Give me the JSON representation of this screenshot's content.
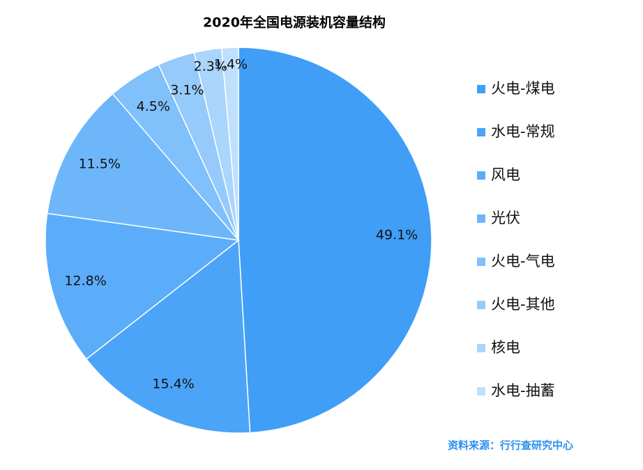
{
  "chart_data": {
    "type": "pie",
    "title": "2020年全国电源装机容量结构",
    "categories": [
      "火电-煤电",
      "水电-常规",
      "风电",
      "光伏",
      "火电-气电",
      "火电-其他",
      "核电",
      "水电-抽蓄"
    ],
    "values": [
      49.1,
      15.4,
      12.8,
      11.5,
      4.5,
      3.1,
      2.3,
      1.4
    ],
    "value_labels": [
      "49.1%",
      "15.4%",
      "12.8%",
      "11.5%",
      "4.5%",
      "3.1%",
      "2.3%",
      "1.4%"
    ],
    "colors": [
      "#409ef7",
      "#4ba4f8",
      "#5badf9",
      "#6db6fa",
      "#80c0fb",
      "#95cafb",
      "#aad5fc",
      "#bfe0fd"
    ],
    "legend": "right",
    "source": "资料来源：行行查研究中心"
  }
}
